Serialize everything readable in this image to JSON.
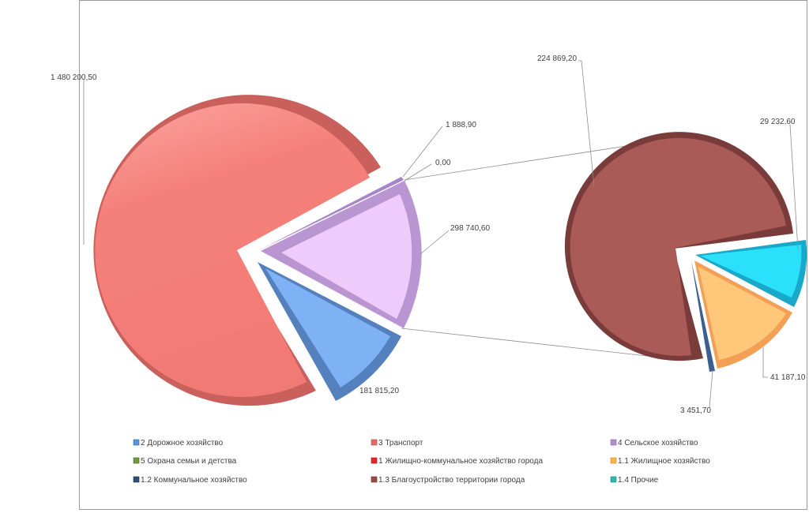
{
  "chart_data": {
    "type": "pie",
    "subtype": "bar-of-pie",
    "legend_position": "bottom",
    "main_pie": {
      "slices": [
        {
          "name": "3 Транспорт",
          "value": 1480200.5,
          "label": "1 480 200,50",
          "color": "#f5807a"
        },
        {
          "name": "5 Охрана семьи и детства",
          "value": 1888.9,
          "label": "1 888,90",
          "color": "#a785c9"
        },
        {
          "name": "1 Жилищно-коммунальное  хозяйство города",
          "value": 0.0,
          "label": "0,00",
          "color": "#d9a6f0"
        },
        {
          "name": "4 Сельское хозяйство",
          "value": 298740.6,
          "label": "298 740,60",
          "color": "#eecbfa"
        },
        {
          "name": "2 Дорожное хозяйство",
          "value": 181815.2,
          "label": "181 815,20",
          "color": "#7fb2f5"
        }
      ]
    },
    "secondary_pie": {
      "slices": [
        {
          "name": "1.3 Благоустройство территории города",
          "value": 224869.2,
          "label": "224 869,20",
          "color": "#aa5a57"
        },
        {
          "name": "1.4 Прочие",
          "value": 29232.6,
          "label": "29 232,60",
          "color": "#2ae0fb"
        },
        {
          "name": "1.1 Жилищное хозяйство",
          "value": 41187.1,
          "label": "41 187,10",
          "color": "#fec77a"
        },
        {
          "name": "1.2 Коммунальное хозяйство",
          "value": 3451.7,
          "label": "3 451,70",
          "color": "#3d5f8f"
        }
      ]
    },
    "legend": [
      {
        "label": "2 Дорожное хозяйство",
        "color": "#5b93d8"
      },
      {
        "label": "3 Транспорт",
        "color": "#e06c66"
      },
      {
        "label": "4 Сельское хозяйство",
        "color": "#b08ed0"
      },
      {
        "label": "5 Охрана семьи и детства",
        "color": "#6e9a3c"
      },
      {
        "label": "1 Жилищно-коммунальное  хозяйство города",
        "color": "#e02a2a"
      },
      {
        "label": "1.1 Жилищное хозяйство",
        "color": "#fbb04a"
      },
      {
        "label": "1.2 Коммунальное хозяйство",
        "color": "#2f4f7a"
      },
      {
        "label": "1.3 Благоустройство территории города",
        "color": "#9c4a47"
      },
      {
        "label": "1.4 Прочие",
        "color": "#2cb7a8"
      }
    ]
  }
}
